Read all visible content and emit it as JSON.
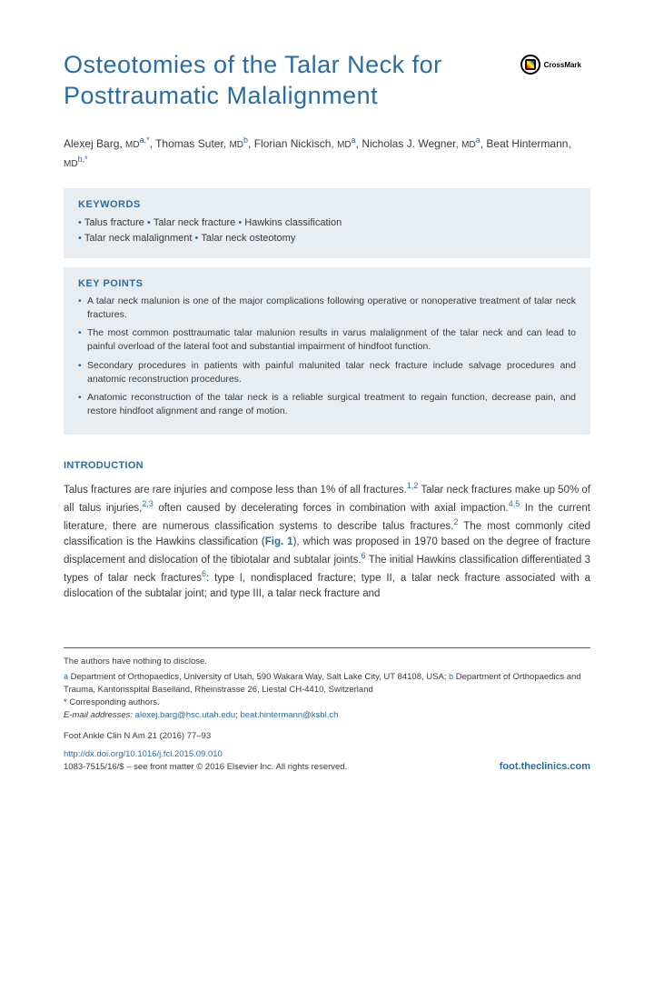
{
  "title": "Osteotomies of the Talar Neck for Posttraumatic Malalignment",
  "crossmark": "CrossMark",
  "authors": [
    {
      "name": "Alexej Barg",
      "degree": "MD",
      "affil": "a,*"
    },
    {
      "name": "Thomas Suter",
      "degree": "MD",
      "affil": "b"
    },
    {
      "name": "Florian Nickisch",
      "degree": "MD",
      "affil": "a"
    },
    {
      "name": "Nicholas J. Wegner",
      "degree": "MD",
      "affil": "a"
    },
    {
      "name": "Beat Hintermann",
      "degree": "MD",
      "affil": "b,*"
    }
  ],
  "keywords_title": "KEYWORDS",
  "keywords": [
    "Talus fracture",
    "Talar neck fracture",
    "Hawkins classification",
    "Talar neck malalignment",
    "Talar neck osteotomy"
  ],
  "keypoints_title": "KEY POINTS",
  "keypoints": [
    "A talar neck malunion is one of the major complications following operative or nonoperative treatment of talar neck fractures.",
    "The most common posttraumatic talar malunion results in varus malalignment of the talar neck and can lead to painful overload of the lateral foot and substantial impairment of hindfoot function.",
    "Secondary procedures in patients with painful malunited talar neck fracture include salvage procedures and anatomic reconstruction procedures.",
    "Anatomic reconstruction of the talar neck is a reliable surgical treatment to regain function, decrease pain, and restore hindfoot alignment and range of motion."
  ],
  "intro_title": "INTRODUCTION",
  "intro_text_parts": {
    "p1": "Talus fractures are rare injuries and compose less than 1% of all fractures.",
    "r1": "1,2",
    "p2": " Talar neck fractures make up 50% of all talus injuries,",
    "r2": "2,3",
    "p3": " often caused by decelerating forces in combination with axial impaction.",
    "r3": "4,5",
    "p4": " In the current literature, there are numerous classification systems to describe talus fractures.",
    "r4": "2",
    "p5": " The most commonly cited classification is the Hawkins classification (",
    "fig": "Fig. 1",
    "p6": "), which was proposed in 1970 based on the degree of fracture displacement and dislocation of the tibiotalar and subtalar joints.",
    "r5": "6",
    "p7": " The initial Hawkins classification differentiated 3 types of talar neck fractures",
    "r6": "6",
    "p8": ": type I, nondisplaced fracture; type II, a talar neck fracture associated with a dislocation of the subtalar joint; and type III, a talar neck fracture and"
  },
  "footer": {
    "disclosure": "The authors have nothing to disclose.",
    "affil_a": "Department of Orthopaedics, University of Utah, 590 Wakara Way, Salt Lake City, UT 84108, USA;",
    "affil_b": "Department of Orthopaedics and Trauma, Kantonsspital Baselland, Rheinstrasse 26, Liestal CH-4410, Switzerland",
    "corresponding": "* Corresponding authors.",
    "email_label": "E-mail addresses:",
    "email1": "alexej.barg@hsc.utah.edu",
    "email2": "beat.hintermann@ksbl.ch",
    "journal_ref": "Foot Ankle Clin N Am 21 (2016) 77–93",
    "doi": "http://dx.doi.org/10.1016/j.fcl.2015.09.010",
    "journal_link": "foot.theclinics.com",
    "issn": "1083-7515/16/$ – see front matter © 2016 Elsevier Inc. All rights reserved."
  },
  "colors": {
    "primary": "#2b6ca3",
    "box_bg": "#e8edf2",
    "text": "#3a3a3a"
  }
}
